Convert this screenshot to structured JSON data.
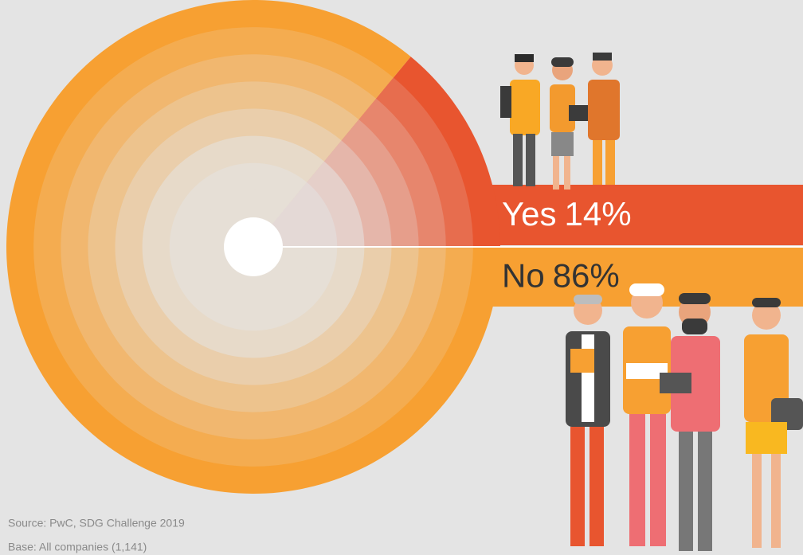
{
  "chart_data": {
    "type": "pie",
    "categories": [
      "Yes",
      "No"
    ],
    "values": [
      14,
      86
    ],
    "value_labels": [
      "14%",
      "86%"
    ],
    "colors": [
      "#e8552f",
      "#f7a032"
    ],
    "source": "Source: PwC, SDG Challenge 2019",
    "base": "Base: All companies (1,141)"
  }
}
